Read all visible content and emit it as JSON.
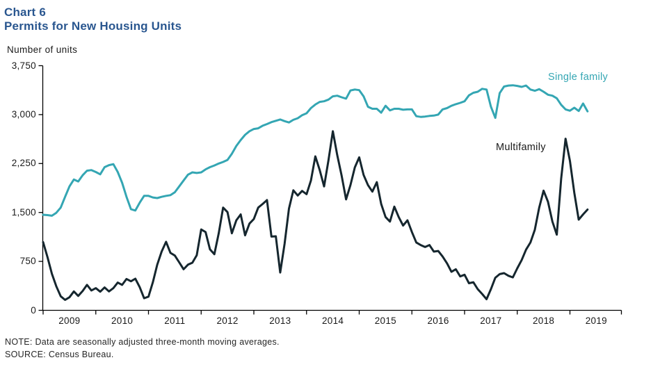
{
  "header": {
    "chart_label": "Chart 6",
    "title": "Permits for New Housing Units"
  },
  "chart_data": {
    "type": "line",
    "title": "Permits for New Housing Units",
    "xlabel": "",
    "ylabel": "Number of units",
    "ylim": [
      0,
      3750
    ],
    "yticks": [
      0,
      750,
      1500,
      2250,
      3000,
      3750
    ],
    "ytick_labels": [
      "0",
      "750",
      "1,500",
      "2,250",
      "3,000",
      "3,750"
    ],
    "xtick_year_labels": [
      "2009",
      "2010",
      "2011",
      "2012",
      "2013",
      "2014",
      "2015",
      "2016",
      "2017",
      "2018",
      "2019"
    ],
    "x_unit": "month",
    "x_start": "2009-01",
    "x_end": "2019-05",
    "grid": false,
    "legend_position": "inline-labels",
    "axis_color": "#000000",
    "series": [
      {
        "name": "Single family",
        "color": "#34a6b3",
        "values": [
          1465,
          1460,
          1450,
          1495,
          1575,
          1740,
          1900,
          2005,
          1975,
          2070,
          2140,
          2150,
          2120,
          2085,
          2195,
          2225,
          2240,
          2120,
          1955,
          1740,
          1550,
          1530,
          1650,
          1755,
          1755,
          1730,
          1720,
          1740,
          1755,
          1765,
          1810,
          1900,
          1990,
          2080,
          2115,
          2105,
          2115,
          2160,
          2195,
          2220,
          2250,
          2275,
          2305,
          2400,
          2520,
          2610,
          2690,
          2745,
          2780,
          2790,
          2830,
          2855,
          2885,
          2905,
          2925,
          2900,
          2880,
          2920,
          2945,
          2990,
          3020,
          3100,
          3155,
          3195,
          3205,
          3230,
          3280,
          3290,
          3265,
          3245,
          3370,
          3385,
          3375,
          3280,
          3120,
          3090,
          3090,
          3030,
          3135,
          3065,
          3090,
          3090,
          3075,
          3080,
          3080,
          2975,
          2965,
          2970,
          2980,
          2985,
          3000,
          3080,
          3100,
          3135,
          3160,
          3180,
          3205,
          3295,
          3335,
          3350,
          3395,
          3385,
          3120,
          2950,
          3330,
          3430,
          3445,
          3450,
          3440,
          3425,
          3445,
          3385,
          3365,
          3390,
          3350,
          3305,
          3290,
          3250,
          3150,
          3080,
          3060,
          3105,
          3055,
          3170,
          3050
        ]
      },
      {
        "name": "Multifamily",
        "color": "#15262e",
        "values": [
          1045,
          815,
          560,
          370,
          215,
          160,
          200,
          290,
          220,
          295,
          390,
          305,
          340,
          285,
          350,
          290,
          340,
          425,
          390,
          480,
          445,
          485,
          355,
          185,
          210,
          430,
          700,
          900,
          1050,
          880,
          840,
          735,
          630,
          700,
          730,
          845,
          1240,
          1200,
          935,
          860,
          1180,
          1575,
          1505,
          1180,
          1380,
          1470,
          1150,
          1330,
          1400,
          1575,
          1630,
          1690,
          1130,
          1135,
          580,
          1020,
          1560,
          1840,
          1760,
          1830,
          1780,
          1990,
          2360,
          2150,
          1900,
          2300,
          2745,
          2380,
          2060,
          1700,
          1920,
          2190,
          2345,
          2075,
          1920,
          1820,
          1965,
          1630,
          1430,
          1360,
          1590,
          1430,
          1300,
          1380,
          1200,
          1040,
          1000,
          970,
          1000,
          900,
          910,
          825,
          720,
          590,
          630,
          520,
          545,
          415,
          430,
          325,
          250,
          170,
          325,
          500,
          555,
          570,
          530,
          505,
          645,
          770,
          930,
          1040,
          1235,
          1575,
          1835,
          1665,
          1360,
          1160,
          2020,
          2630,
          2290,
          1800,
          1390,
          1470,
          1545
        ]
      }
    ]
  },
  "series_labels": {
    "single_family": "Single family",
    "multifamily": "Multifamily"
  },
  "notes": {
    "note": "NOTE: Data are seasonally adjusted three-month moving averages.",
    "source": "SOURCE: Census Bureau."
  }
}
